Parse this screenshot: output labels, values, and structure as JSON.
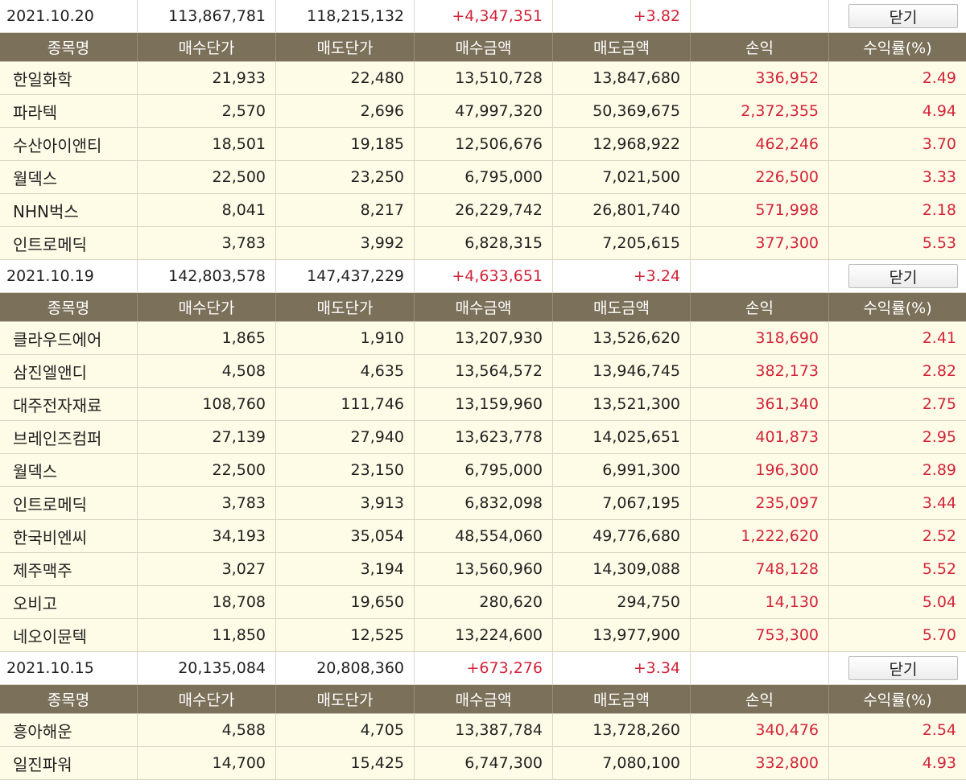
{
  "headers": [
    "종목명",
    "매수단가",
    "매도단가",
    "매수금액",
    "매도금액",
    "손익",
    "수익률(%)"
  ],
  "close_label": "닫기",
  "groups": [
    {
      "date": "2021.10.20",
      "buy_total": "113,867,781",
      "sell_total": "118,215,132",
      "profit": "+4,347,351",
      "rate": "+3.82",
      "rows": [
        [
          "한일화학",
          "21,933",
          "22,480",
          "13,510,728",
          "13,847,680",
          "336,952",
          "2.49"
        ],
        [
          "파라텍",
          "2,570",
          "2,696",
          "47,997,320",
          "50,369,675",
          "2,372,355",
          "4.94"
        ],
        [
          "수산아이앤티",
          "18,501",
          "19,185",
          "12,506,676",
          "12,968,922",
          "462,246",
          "3.70"
        ],
        [
          "월덱스",
          "22,500",
          "23,250",
          "6,795,000",
          "7,021,500",
          "226,500",
          "3.33"
        ],
        [
          "NHN벅스",
          "8,041",
          "8,217",
          "26,229,742",
          "26,801,740",
          "571,998",
          "2.18"
        ],
        [
          "인트로메딕",
          "3,783",
          "3,992",
          "6,828,315",
          "7,205,615",
          "377,300",
          "5.53"
        ]
      ]
    },
    {
      "date": "2021.10.19",
      "buy_total": "142,803,578",
      "sell_total": "147,437,229",
      "profit": "+4,633,651",
      "rate": "+3.24",
      "rows": [
        [
          "클라우드에어",
          "1,865",
          "1,910",
          "13,207,930",
          "13,526,620",
          "318,690",
          "2.41"
        ],
        [
          "삼진엘앤디",
          "4,508",
          "4,635",
          "13,564,572",
          "13,946,745",
          "382,173",
          "2.82"
        ],
        [
          "대주전자재료",
          "108,760",
          "111,746",
          "13,159,960",
          "13,521,300",
          "361,340",
          "2.75"
        ],
        [
          "브레인즈컴퍼",
          "27,139",
          "27,940",
          "13,623,778",
          "14,025,651",
          "401,873",
          "2.95"
        ],
        [
          "월덱스",
          "22,500",
          "23,150",
          "6,795,000",
          "6,991,300",
          "196,300",
          "2.89"
        ],
        [
          "인트로메딕",
          "3,783",
          "3,913",
          "6,832,098",
          "7,067,195",
          "235,097",
          "3.44"
        ],
        [
          "한국비엔씨",
          "34,193",
          "35,054",
          "48,554,060",
          "49,776,680",
          "1,222,620",
          "2.52"
        ],
        [
          "제주맥주",
          "3,027",
          "3,194",
          "13,560,960",
          "14,309,088",
          "748,128",
          "5.52"
        ],
        [
          "오비고",
          "18,708",
          "19,650",
          "280,620",
          "294,750",
          "14,130",
          "5.04"
        ],
        [
          "네오이뮨텍",
          "11,850",
          "12,525",
          "13,224,600",
          "13,977,900",
          "753,300",
          "5.70"
        ]
      ]
    },
    {
      "date": "2021.10.15",
      "buy_total": "20,135,084",
      "sell_total": "20,808,360",
      "profit": "+673,276",
      "rate": "+3.34",
      "rows": [
        [
          "흥아해운",
          "4,588",
          "4,705",
          "13,387,784",
          "13,728,260",
          "340,476",
          "2.54"
        ],
        [
          "일진파워",
          "14,700",
          "15,425",
          "6,747,300",
          "7,080,100",
          "332,800",
          "4.93"
        ]
      ]
    }
  ],
  "colors": {
    "header_bg": "#7b7059",
    "row_bg": "#fefbe6",
    "profit_red": "#d3243a"
  }
}
